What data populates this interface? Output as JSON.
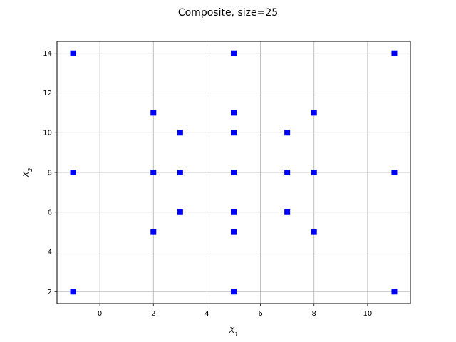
{
  "chart_data": {
    "type": "scatter",
    "title": "Composite, size=25",
    "xlabel": "X",
    "xlabel_sub": "1",
    "ylabel": "X",
    "ylabel_sub": "2",
    "xlim": [
      -1.6,
      11.6
    ],
    "ylim": [
      1.4,
      14.6
    ],
    "xticks": [
      0,
      2,
      4,
      6,
      8,
      10
    ],
    "yticks": [
      2,
      4,
      6,
      8,
      10,
      12,
      14
    ],
    "grid": true,
    "marker": "square",
    "color": "#0000ff",
    "points": [
      [
        -1,
        2
      ],
      [
        -1,
        8
      ],
      [
        -1,
        14
      ],
      [
        2,
        5
      ],
      [
        2,
        8
      ],
      [
        2,
        11
      ],
      [
        3,
        6
      ],
      [
        3,
        8
      ],
      [
        3,
        10
      ],
      [
        5,
        2
      ],
      [
        5,
        5
      ],
      [
        5,
        6
      ],
      [
        5,
        8
      ],
      [
        5,
        10
      ],
      [
        5,
        11
      ],
      [
        5,
        14
      ],
      [
        7,
        6
      ],
      [
        7,
        8
      ],
      [
        7,
        10
      ],
      [
        8,
        5
      ],
      [
        8,
        8
      ],
      [
        8,
        11
      ],
      [
        11,
        2
      ],
      [
        11,
        8
      ],
      [
        11,
        14
      ]
    ]
  }
}
